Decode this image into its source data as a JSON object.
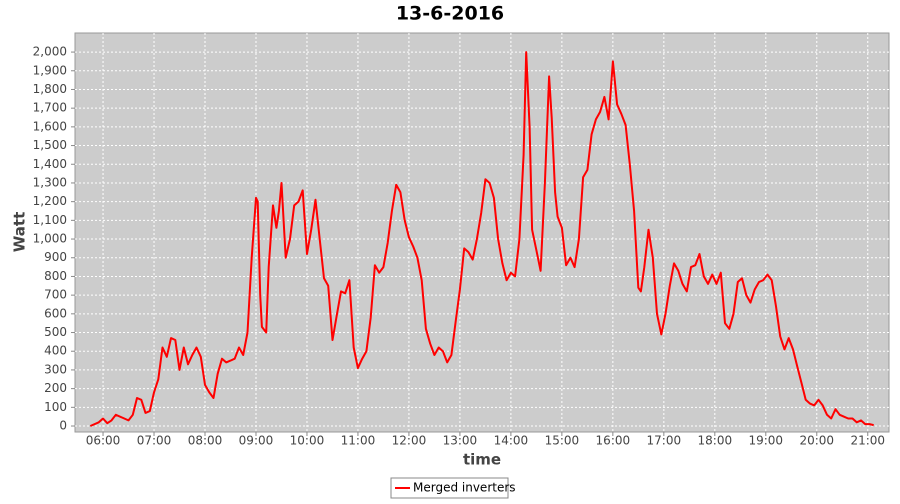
{
  "chart_data": {
    "type": "line",
    "title": "13-6-2016",
    "x_label": "time",
    "y_label": "Watt",
    "x": [
      "05:45",
      "05:55",
      "06:00",
      "06:05",
      "06:10",
      "06:15",
      "06:25",
      "06:30",
      "06:35",
      "06:40",
      "06:45",
      "06:50",
      "06:55",
      "07:00",
      "07:05",
      "07:10",
      "07:15",
      "07:20",
      "07:25",
      "07:30",
      "07:35",
      "07:40",
      "07:45",
      "07:50",
      "07:55",
      "08:00",
      "08:05",
      "08:10",
      "08:15",
      "08:20",
      "08:25",
      "08:30",
      "08:35",
      "08:40",
      "08:45",
      "08:50",
      "08:55",
      "09:00",
      "09:02",
      "09:05",
      "09:07",
      "09:12",
      "09:15",
      "09:20",
      "09:24",
      "09:27",
      "09:30",
      "09:35",
      "09:40",
      "09:45",
      "09:50",
      "09:55",
      "10:00",
      "10:05",
      "10:10",
      "10:15",
      "10:20",
      "10:25",
      "10:30",
      "10:35",
      "10:40",
      "10:45",
      "10:50",
      "10:55",
      "11:00",
      "11:05",
      "11:10",
      "11:15",
      "11:20",
      "11:25",
      "11:30",
      "11:35",
      "11:40",
      "11:45",
      "11:50",
      "11:55",
      "12:00",
      "12:05",
      "12:10",
      "12:15",
      "12:20",
      "12:25",
      "12:30",
      "12:35",
      "12:40",
      "12:45",
      "12:50",
      "12:55",
      "13:00",
      "13:05",
      "13:10",
      "13:15",
      "13:20",
      "13:25",
      "13:30",
      "13:35",
      "13:40",
      "13:45",
      "13:50",
      "13:55",
      "14:00",
      "14:05",
      "14:10",
      "14:15",
      "14:18",
      "14:22",
      "14:25",
      "14:30",
      "14:35",
      "14:40",
      "14:45",
      "14:48",
      "14:52",
      "14:55",
      "15:00",
      "15:05",
      "15:10",
      "15:15",
      "15:20",
      "15:25",
      "15:30",
      "15:35",
      "15:40",
      "15:45",
      "15:50",
      "15:55",
      "16:00",
      "16:05",
      "16:10",
      "16:15",
      "16:20",
      "16:25",
      "16:30",
      "16:33",
      "16:37",
      "16:42",
      "16:47",
      "16:52",
      "16:57",
      "17:02",
      "17:07",
      "17:12",
      "17:17",
      "17:22",
      "17:27",
      "17:32",
      "17:37",
      "17:42",
      "17:47",
      "17:52",
      "17:57",
      "18:02",
      "18:07",
      "18:12",
      "18:17",
      "18:22",
      "18:27",
      "18:32",
      "18:37",
      "18:42",
      "18:47",
      "18:52",
      "18:57",
      "19:02",
      "19:07",
      "19:12",
      "19:17",
      "19:22",
      "19:27",
      "19:32",
      "19:37",
      "19:42",
      "19:47",
      "19:52",
      "19:57",
      "20:02",
      "20:07",
      "20:12",
      "20:17",
      "20:22",
      "20:27",
      "20:32",
      "20:37",
      "20:42",
      "20:47",
      "20:52",
      "20:57",
      "21:02",
      "21:07"
    ],
    "series": [
      {
        "name": "Merged inverters",
        "color": "#ff0000",
        "values": [
          0,
          20,
          40,
          15,
          30,
          60,
          40,
          30,
          60,
          150,
          140,
          70,
          80,
          180,
          250,
          420,
          370,
          470,
          460,
          300,
          420,
          330,
          380,
          420,
          370,
          220,
          180,
          150,
          280,
          360,
          340,
          350,
          360,
          420,
          380,
          500,
          900,
          1220,
          1200,
          700,
          530,
          500,
          850,
          1180,
          1060,
          1150,
          1300,
          900,
          1000,
          1180,
          1200,
          1260,
          920,
          1050,
          1210,
          1000,
          790,
          750,
          460,
          590,
          720,
          710,
          780,
          420,
          310,
          360,
          400,
          580,
          860,
          820,
          850,
          980,
          1150,
          1290,
          1250,
          1100,
          1010,
          960,
          900,
          780,
          520,
          440,
          380,
          420,
          400,
          340,
          380,
          560,
          730,
          950,
          930,
          890,
          1000,
          1140,
          1320,
          1300,
          1220,
          1000,
          870,
          780,
          820,
          800,
          1000,
          1450,
          2000,
          1600,
          1050,
          940,
          830,
          1300,
          1870,
          1650,
          1250,
          1120,
          1060,
          860,
          900,
          850,
          1000,
          1330,
          1370,
          1560,
          1640,
          1680,
          1760,
          1640,
          1950,
          1720,
          1670,
          1610,
          1400,
          1150,
          740,
          720,
          850,
          1050,
          900,
          600,
          490,
          600,
          750,
          870,
          830,
          760,
          720,
          850,
          860,
          920,
          800,
          760,
          810,
          760,
          820,
          550,
          520,
          600,
          770,
          790,
          700,
          660,
          730,
          770,
          780,
          810,
          780,
          640,
          480,
          410,
          470,
          410,
          320,
          230,
          140,
          120,
          110,
          140,
          110,
          60,
          40,
          90,
          60,
          50,
          40,
          40,
          20,
          30,
          10,
          10,
          5
        ]
      }
    ],
    "xlim": [
      "05:27",
      "21:25"
    ],
    "xticks": [
      "06:00",
      "07:00",
      "08:00",
      "09:00",
      "10:00",
      "11:00",
      "12:00",
      "13:00",
      "14:00",
      "15:00",
      "16:00",
      "17:00",
      "18:00",
      "19:00",
      "20:00",
      "21:00"
    ],
    "ylim": [
      -32,
      2102
    ],
    "yticks": [
      0,
      100,
      200,
      300,
      400,
      500,
      600,
      700,
      800,
      900,
      {
        "value": 1000,
        "label": "1,000"
      },
      {
        "value": 1100,
        "label": "1,100"
      },
      {
        "value": 1200,
        "label": "1,200"
      },
      {
        "value": 1300,
        "label": "1,300"
      },
      {
        "value": 1400,
        "label": "1,400"
      },
      {
        "value": 1500,
        "label": "1,500"
      },
      {
        "value": 1600,
        "label": "1,600"
      },
      {
        "value": 1700,
        "label": "1,700"
      },
      {
        "value": 1800,
        "label": "1,800"
      },
      {
        "value": 1900,
        "label": "1,900"
      },
      {
        "value": 2000,
        "label": "2,000"
      }
    ],
    "grid": true,
    "legend": "bottom"
  }
}
